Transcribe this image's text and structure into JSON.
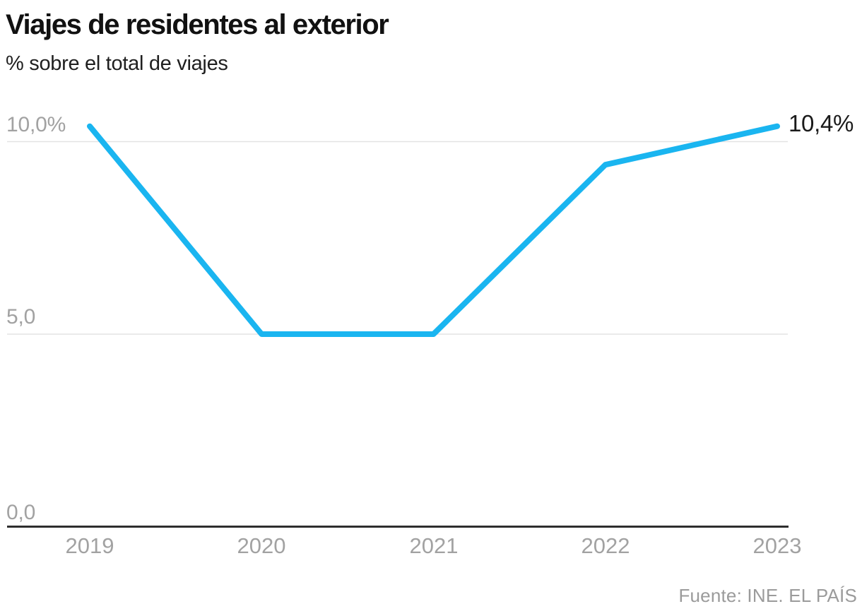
{
  "header": {
    "title": "Viajes de residentes al exterior",
    "subtitle": "% sobre el total de viajes"
  },
  "chart_data": {
    "type": "line",
    "title": "Viajes de residentes al exterior",
    "subtitle": "% sobre el total de viajes",
    "categories": [
      "2019",
      "2020",
      "2021",
      "2022",
      "2023"
    ],
    "values": [
      10.4,
      5.0,
      5.0,
      9.4,
      10.4
    ],
    "unit": "%",
    "ylim": [
      0,
      11
    ],
    "ytick_values": [
      10.0,
      5.0,
      0.0
    ],
    "ytick_labels": [
      "10,0%",
      "5,0",
      "0,0"
    ],
    "end_label": "10,4%",
    "grid": "horizontal",
    "legend": "none"
  },
  "footer": {
    "source": "Fuente: INE. EL PAÍS"
  },
  "colors": {
    "line": "#1ab5f0",
    "grid": "#e3e3e3",
    "axis": "#2e2e2e",
    "tick_text": "#a2a2a2",
    "title_text": "#111111",
    "annotation_text": "#1a1a1a",
    "source_text": "#9b9b9b"
  }
}
